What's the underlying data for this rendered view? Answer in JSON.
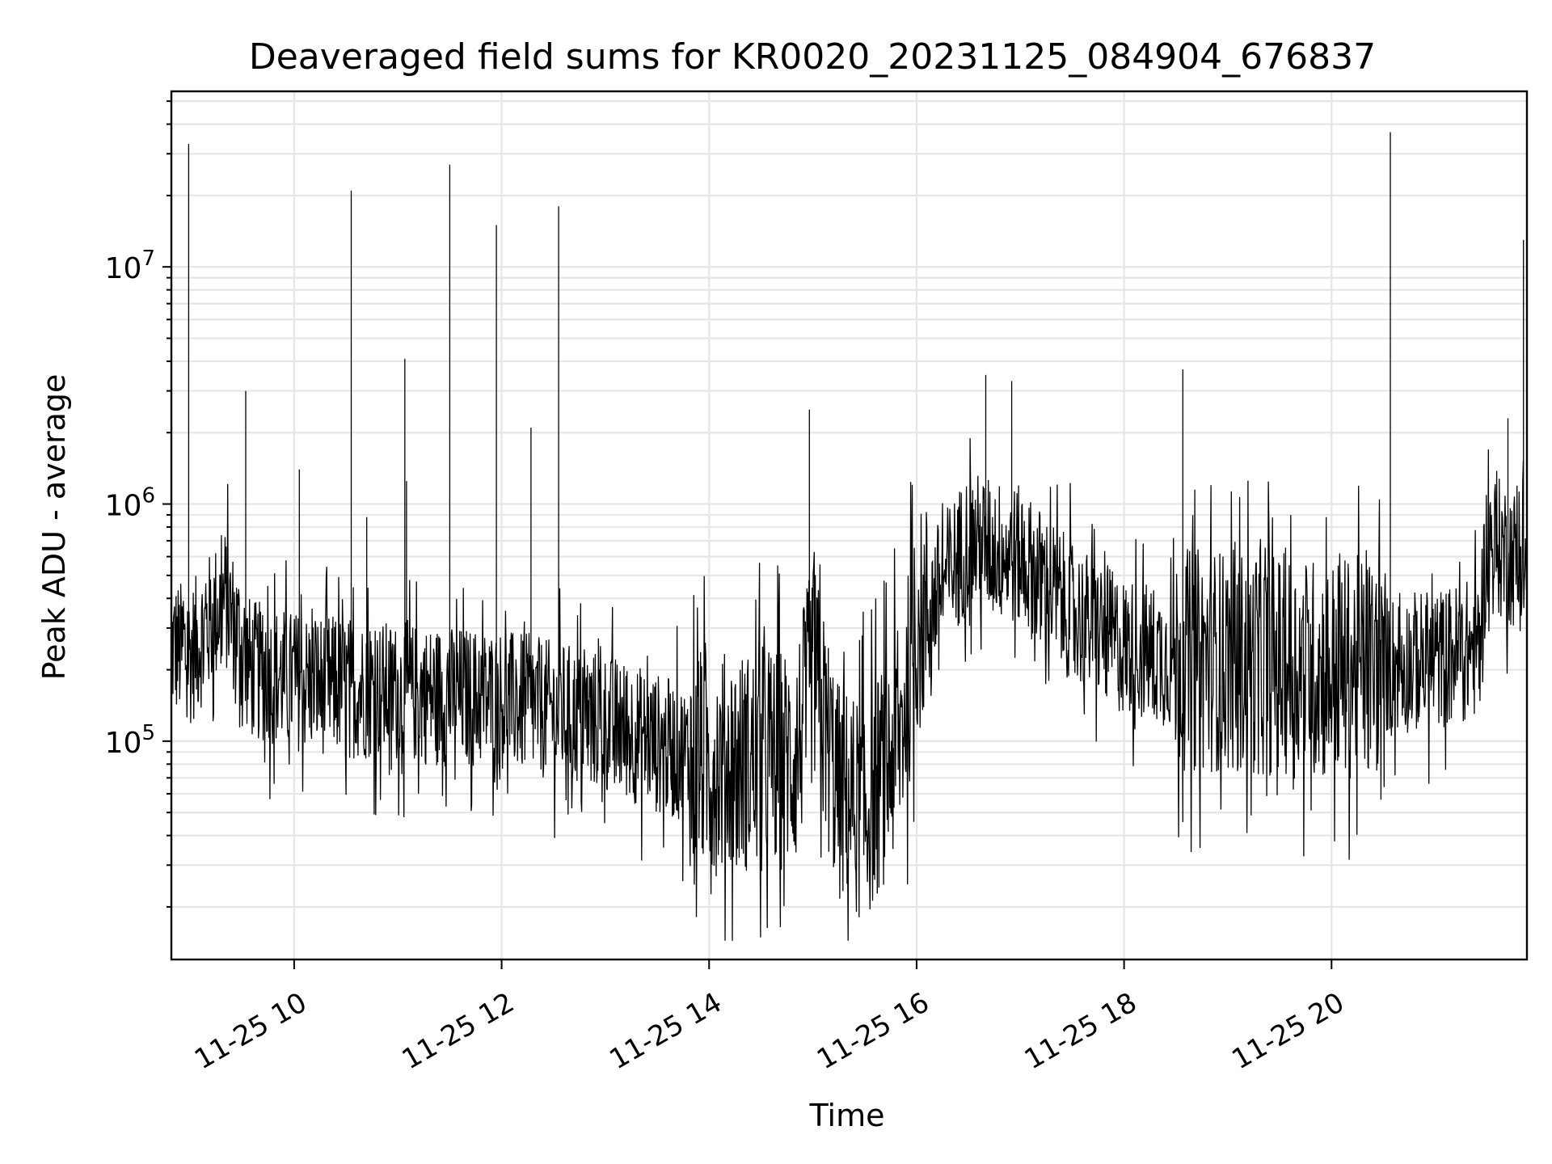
{
  "chart_data": {
    "type": "line",
    "title": "Deaveraged field sums for KR0020_20231125_084904_676837",
    "xlabel": "Time",
    "ylabel": "Peak ADU - average",
    "x_ticks": [
      "11-25 10",
      "11-25 12",
      "11-25 14",
      "11-25 16",
      "11-25 18",
      "11-25 20"
    ],
    "x_range": [
      "2023-11-25 08:49",
      "2023-11-25 21:53"
    ],
    "y_scale": "log",
    "y_range": [
      12000,
      55000000
    ],
    "y_ticks": [
      {
        "value": 100000,
        "base": "10",
        "exp": "5"
      },
      {
        "value": 1000000,
        "base": "10",
        "exp": "6"
      },
      {
        "value": 10000000,
        "base": "10",
        "exp": "7"
      }
    ],
    "grid": true,
    "line_color": "#000000",
    "series": [
      {
        "name": "",
        "baseline": [
          [
            "2023-11-25 08:49",
            250000
          ],
          [
            "2023-11-25 09:00",
            230000
          ],
          [
            "2023-11-25 09:20",
            400000
          ],
          [
            "2023-11-25 09:35",
            200000
          ],
          [
            "2023-11-25 10:00",
            180000
          ],
          [
            "2023-11-25 11:00",
            160000
          ],
          [
            "2023-11-25 12:00",
            150000
          ],
          [
            "2023-11-25 13:00",
            120000
          ],
          [
            "2023-11-25 14:00",
            80000
          ],
          [
            "2023-11-25 14:50",
            85000
          ],
          [
            "2023-11-25 15:00",
            200000
          ],
          [
            "2023-11-25 15:15",
            60000
          ],
          [
            "2023-11-25 15:30",
            50000
          ],
          [
            "2023-11-25 15:50",
            100000
          ],
          [
            "2023-11-25 16:00",
            300000
          ],
          [
            "2023-11-25 16:30",
            700000
          ],
          [
            "2023-11-25 17:00",
            600000
          ],
          [
            "2023-11-25 17:30",
            350000
          ],
          [
            "2023-11-25 18:00",
            250000
          ],
          [
            "2023-11-25 18:30",
            220000
          ],
          [
            "2023-11-25 19:00",
            220000
          ],
          [
            "2023-11-25 20:00",
            200000
          ],
          [
            "2023-11-25 21:00",
            220000
          ],
          [
            "2023-11-25 21:25",
            250000
          ],
          [
            "2023-11-25 21:30",
            700000
          ],
          [
            "2023-11-25 21:53",
            550000
          ]
        ],
        "spikes": [
          [
            "2023-11-25 08:59",
            33000000
          ],
          [
            "2023-11-25 09:32",
            3000000
          ],
          [
            "2023-11-25 10:03",
            1400000
          ],
          [
            "2023-11-25 10:33",
            21000000
          ],
          [
            "2023-11-25 10:42",
            880000
          ],
          [
            "2023-11-25 11:04",
            4100000
          ],
          [
            "2023-11-25 11:05",
            1250000
          ],
          [
            "2023-11-25 11:30",
            27000000
          ],
          [
            "2023-11-25 11:57",
            15000000
          ],
          [
            "2023-11-25 12:17",
            2100000
          ],
          [
            "2023-11-25 12:33",
            18000000
          ],
          [
            "2023-11-25 14:58",
            2500000
          ],
          [
            "2023-11-25 16:40",
            3500000
          ],
          [
            "2023-11-25 16:55",
            3300000
          ],
          [
            "2023-11-25 18:34",
            3700000
          ],
          [
            "2023-11-25 20:34",
            37000000
          ],
          [
            "2023-11-25 21:42",
            2300000
          ],
          [
            "2023-11-25 21:51",
            13000000
          ]
        ]
      }
    ]
  }
}
